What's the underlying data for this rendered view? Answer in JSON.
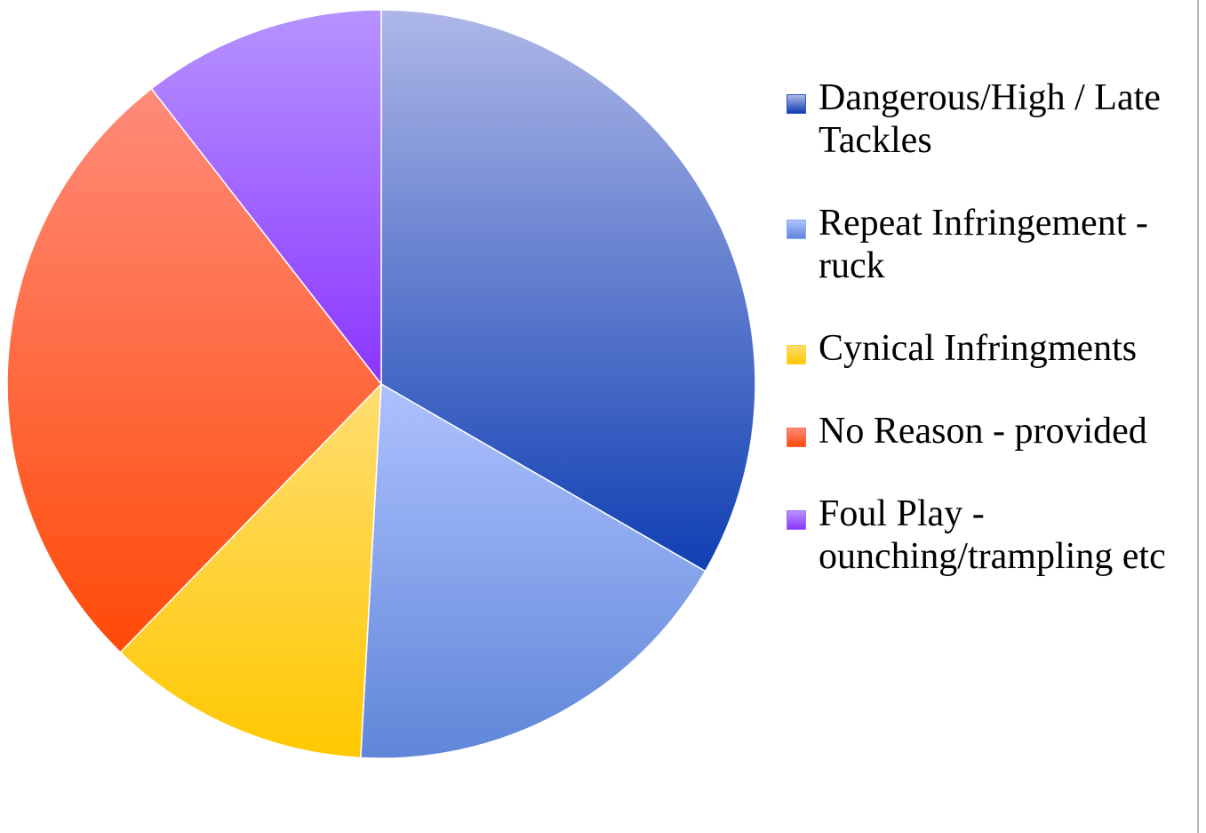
{
  "chart_data": {
    "type": "pie",
    "title": "",
    "series": [
      {
        "values": [
          38,
          20,
          13,
          31,
          12
        ]
      }
    ],
    "categories": [
      "Dangerous/High / Late Tackles",
      "Repeat Infringement -ruck",
      "Cynical Infringments",
      "No Reason - provided",
      "Foul Play - ounching/trampling etc"
    ],
    "colors": [
      {
        "top": "#aeb7e7",
        "bottom": "#0f3fb3"
      },
      {
        "top": "#aec1ff",
        "bottom": "#5f86d8"
      },
      {
        "top": "#ffdd72",
        "bottom": "#ffc800"
      },
      {
        "top": "#ff8b7a",
        "bottom": "#ff4a08"
      },
      {
        "top": "#b693ff",
        "bottom": "#8b35ff"
      }
    ],
    "legend_position": "right"
  },
  "legend": {
    "items": [
      {
        "label": "Dangerous/High / Late Tackles",
        "color": "#2e55c4"
      },
      {
        "label": "Repeat Infringement -ruck",
        "color": "#86a9ff"
      },
      {
        "label": "Cynical Infringments",
        "color": "#ffd33b"
      },
      {
        "label": "No Reason - provided",
        "color": "#ff6b4f"
      },
      {
        "label": "Foul Play - ounching/trampling etc",
        "color": "#a06bff"
      }
    ]
  }
}
